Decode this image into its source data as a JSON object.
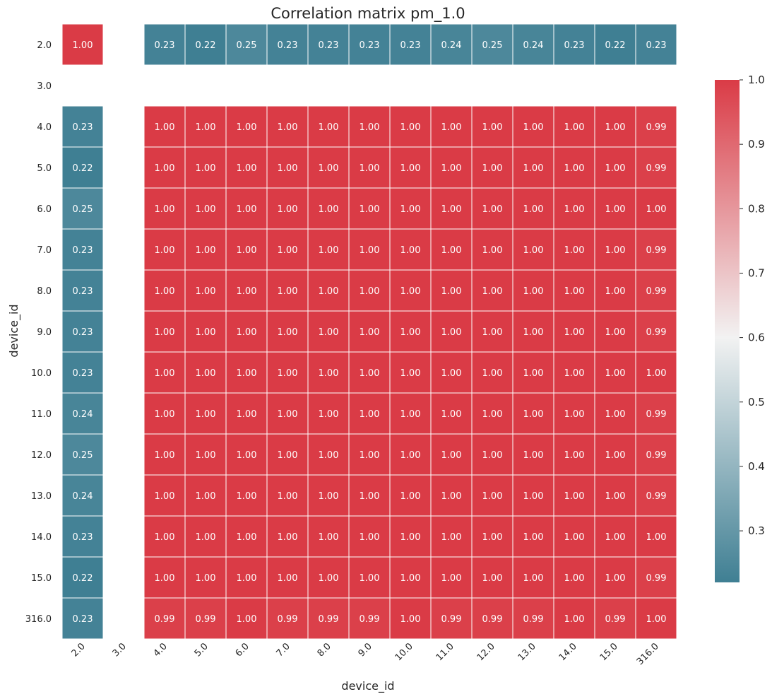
{
  "chart_data": {
    "type": "heatmap",
    "title": "Correlation matrix pm_1.0",
    "xlabel": "device_id",
    "ylabel": "device_id",
    "row_labels": [
      "2.0",
      "3.0",
      "4.0",
      "5.0",
      "6.0",
      "7.0",
      "8.0",
      "9.0",
      "10.0",
      "11.0",
      "12.0",
      "13.0",
      "14.0",
      "15.0",
      "316.0"
    ],
    "col_labels": [
      "2.0",
      "3.0",
      "4.0",
      "5.0",
      "6.0",
      "7.0",
      "8.0",
      "9.0",
      "10.0",
      "11.0",
      "12.0",
      "13.0",
      "14.0",
      "15.0",
      "316.0"
    ],
    "values": [
      [
        1.0,
        null,
        0.23,
        0.22,
        0.25,
        0.23,
        0.23,
        0.23,
        0.23,
        0.24,
        0.25,
        0.24,
        0.23,
        0.22,
        0.23
      ],
      [
        null,
        null,
        null,
        null,
        null,
        null,
        null,
        null,
        null,
        null,
        null,
        null,
        null,
        null,
        null
      ],
      [
        0.23,
        null,
        1.0,
        1.0,
        1.0,
        1.0,
        1.0,
        1.0,
        1.0,
        1.0,
        1.0,
        1.0,
        1.0,
        1.0,
        0.99
      ],
      [
        0.22,
        null,
        1.0,
        1.0,
        1.0,
        1.0,
        1.0,
        1.0,
        1.0,
        1.0,
        1.0,
        1.0,
        1.0,
        1.0,
        0.99
      ],
      [
        0.25,
        null,
        1.0,
        1.0,
        1.0,
        1.0,
        1.0,
        1.0,
        1.0,
        1.0,
        1.0,
        1.0,
        1.0,
        1.0,
        1.0
      ],
      [
        0.23,
        null,
        1.0,
        1.0,
        1.0,
        1.0,
        1.0,
        1.0,
        1.0,
        1.0,
        1.0,
        1.0,
        1.0,
        1.0,
        0.99
      ],
      [
        0.23,
        null,
        1.0,
        1.0,
        1.0,
        1.0,
        1.0,
        1.0,
        1.0,
        1.0,
        1.0,
        1.0,
        1.0,
        1.0,
        0.99
      ],
      [
        0.23,
        null,
        1.0,
        1.0,
        1.0,
        1.0,
        1.0,
        1.0,
        1.0,
        1.0,
        1.0,
        1.0,
        1.0,
        1.0,
        0.99
      ],
      [
        0.23,
        null,
        1.0,
        1.0,
        1.0,
        1.0,
        1.0,
        1.0,
        1.0,
        1.0,
        1.0,
        1.0,
        1.0,
        1.0,
        1.0
      ],
      [
        0.24,
        null,
        1.0,
        1.0,
        1.0,
        1.0,
        1.0,
        1.0,
        1.0,
        1.0,
        1.0,
        1.0,
        1.0,
        1.0,
        0.99
      ],
      [
        0.25,
        null,
        1.0,
        1.0,
        1.0,
        1.0,
        1.0,
        1.0,
        1.0,
        1.0,
        1.0,
        1.0,
        1.0,
        1.0,
        0.99
      ],
      [
        0.24,
        null,
        1.0,
        1.0,
        1.0,
        1.0,
        1.0,
        1.0,
        1.0,
        1.0,
        1.0,
        1.0,
        1.0,
        1.0,
        0.99
      ],
      [
        0.23,
        null,
        1.0,
        1.0,
        1.0,
        1.0,
        1.0,
        1.0,
        1.0,
        1.0,
        1.0,
        1.0,
        1.0,
        1.0,
        1.0
      ],
      [
        0.22,
        null,
        1.0,
        1.0,
        1.0,
        1.0,
        1.0,
        1.0,
        1.0,
        1.0,
        1.0,
        1.0,
        1.0,
        1.0,
        0.99
      ],
      [
        0.23,
        null,
        0.99,
        0.99,
        1.0,
        0.99,
        0.99,
        0.99,
        1.0,
        0.99,
        0.99,
        0.99,
        1.0,
        0.99,
        1.0
      ]
    ],
    "colorbar": {
      "range": [
        0.22,
        1.0
      ],
      "ticks": [
        "0.3",
        "0.4",
        "0.5",
        "0.6",
        "0.7",
        "0.8",
        "0.9",
        "1.0"
      ],
      "colors": [
        "#3f7f93",
        "#f2f2f2",
        "#da3b46"
      ]
    },
    "grid": false,
    "legend": "colorbar-right"
  }
}
